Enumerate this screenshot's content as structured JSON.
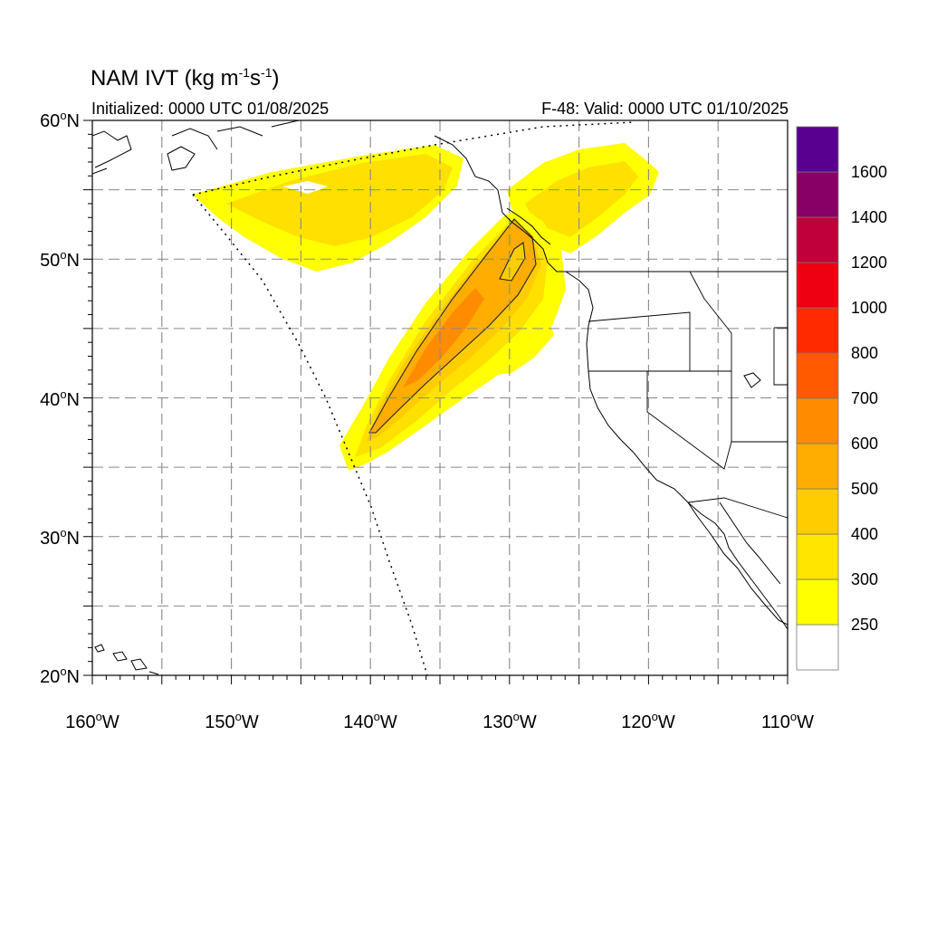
{
  "title": {
    "prefix": "NAM IVT (kg m",
    "exp1": "-1",
    "mid": "s",
    "exp2": "-1",
    "suffix": ")"
  },
  "subtitle_left": "Initialized: 0000 UTC 01/08/2025",
  "subtitle_right": "F-48: Valid: 0000 UTC 01/10/2025",
  "lat_labels": [
    "60",
    "50",
    "40",
    "30",
    "20"
  ],
  "lat_suffix": "N",
  "lon_labels": [
    "160",
    "150",
    "140",
    "130",
    "120",
    "110"
  ],
  "lon_suffix": "W",
  "degree_symbol": "o",
  "colorbar": {
    "labels": [
      "1600",
      "1400",
      "1200",
      "1000",
      "800",
      "700",
      "600",
      "500",
      "400",
      "300",
      "250"
    ],
    "colors": [
      "#ffffff",
      "#ffff00",
      "#ffe600",
      "#ffcc00",
      "#ffad00",
      "#ff8c00",
      "#ff5a00",
      "#ff2a00",
      "#ee0010",
      "#c0003a",
      "#880066",
      "#5a0090"
    ]
  },
  "fill_colors": {
    "yellow": "#ffff00",
    "light_orange": "#ffe000",
    "orange1": "#ffcc00",
    "orange2": "#ffad00",
    "orange3": "#ff8c00"
  }
}
